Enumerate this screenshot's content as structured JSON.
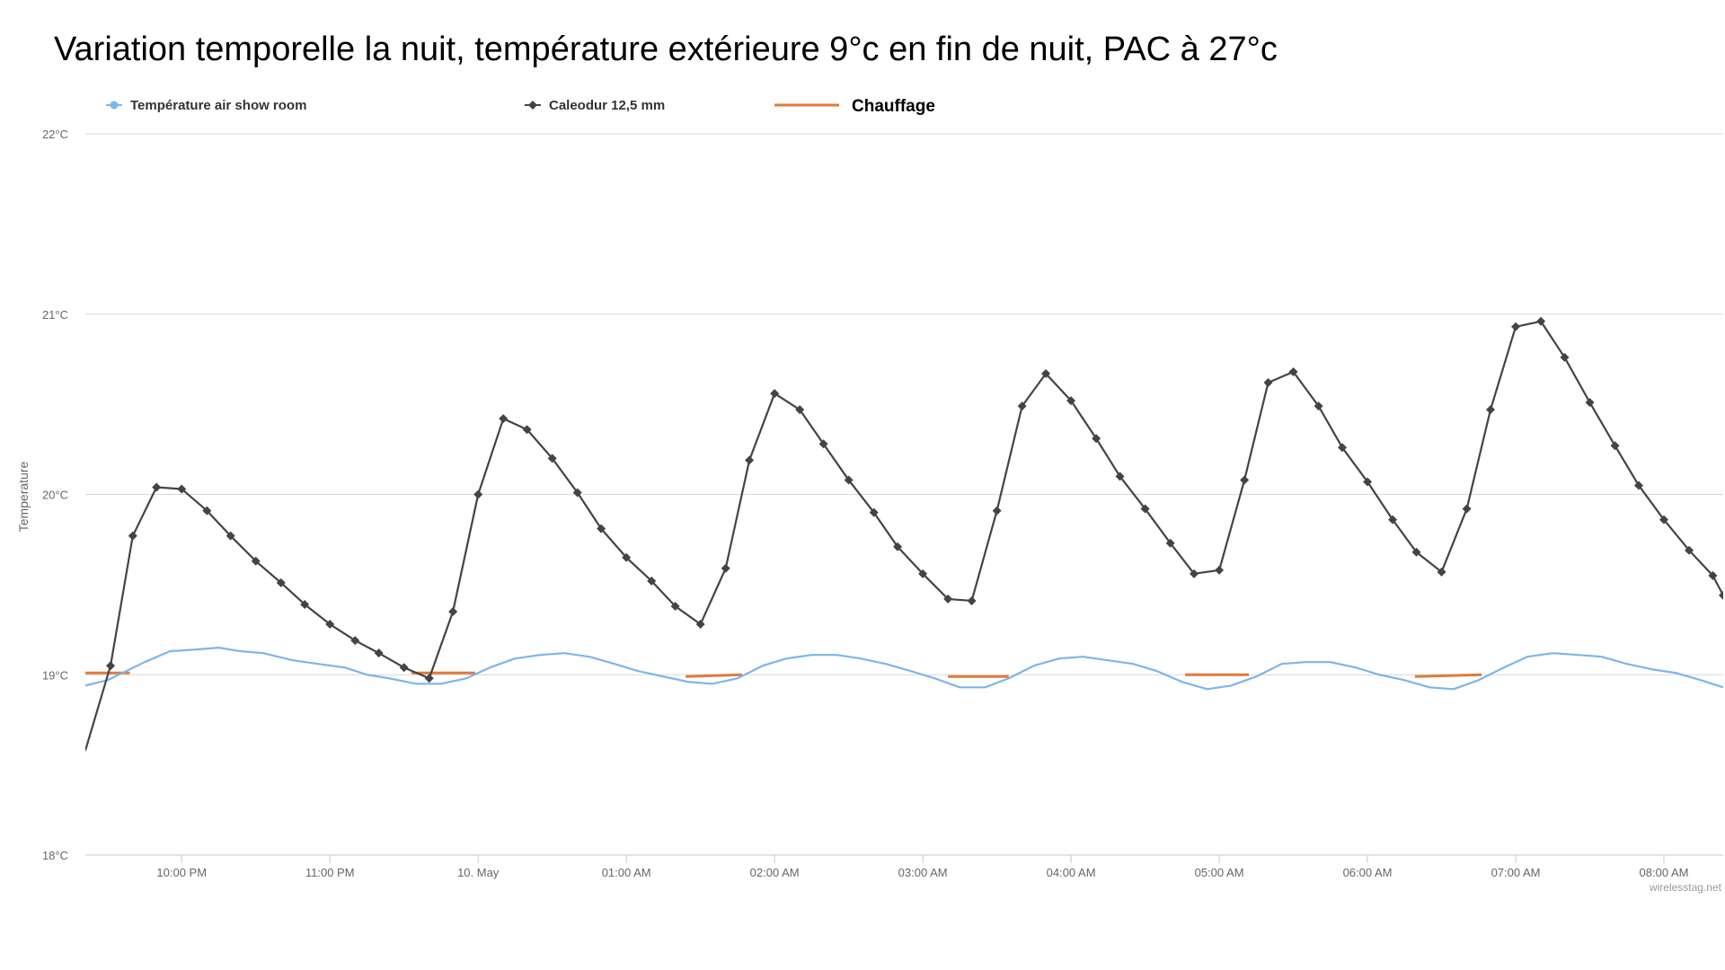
{
  "title": "Variation temporelle la nuit, température extérieure 9°c en fin de nuit, PAC à 27°c",
  "chart_data": {
    "type": "line",
    "ylabel": "Temperature",
    "ylim": [
      18,
      22
    ],
    "yticks": [
      {
        "value": 18,
        "label": "18°C"
      },
      {
        "value": 19,
        "label": "19°C"
      },
      {
        "value": 20,
        "label": "20°C"
      },
      {
        "value": 21,
        "label": "21°C"
      },
      {
        "value": 22,
        "label": "22°C"
      }
    ],
    "xlim_hours": [
      -2.65,
      8.4
    ],
    "xticks": [
      {
        "hour": -2,
        "label": "10:00 PM"
      },
      {
        "hour": -1,
        "label": "11:00 PM"
      },
      {
        "hour": 0,
        "label": "10. May"
      },
      {
        "hour": 1,
        "label": "01:00 AM"
      },
      {
        "hour": 2,
        "label": "02:00 AM"
      },
      {
        "hour": 3,
        "label": "03:00 AM"
      },
      {
        "hour": 4,
        "label": "04:00 AM"
      },
      {
        "hour": 5,
        "label": "05:00 AM"
      },
      {
        "hour": 6,
        "label": "06:00 AM"
      },
      {
        "hour": 7,
        "label": "07:00 AM"
      },
      {
        "hour": 8,
        "label": "08:00 AM"
      }
    ],
    "credits": "wirelesstag.net",
    "series": [
      {
        "name": "Température air show room",
        "color": "#7cb5ec",
        "marker": "circle",
        "x": [
          -2.65,
          -2.5,
          -2.4,
          -2.25,
          -2.08,
          -1.9,
          -1.75,
          -1.6,
          -1.45,
          -1.25,
          -1.08,
          -0.9,
          -0.75,
          -0.6,
          -0.42,
          -0.25,
          -0.08,
          0.08,
          0.25,
          0.42,
          0.58,
          0.75,
          0.92,
          1.08,
          1.25,
          1.42,
          1.58,
          1.75,
          1.92,
          2.08,
          2.25,
          2.42,
          2.58,
          2.75,
          2.92,
          3.08,
          3.25,
          3.42,
          3.58,
          3.75,
          3.92,
          4.08,
          4.25,
          4.42,
          4.58,
          4.75,
          4.92,
          5.08,
          5.25,
          5.42,
          5.58,
          5.75,
          5.92,
          6.08,
          6.25,
          6.42,
          6.58,
          6.75,
          6.92,
          7.08,
          7.25,
          7.42,
          7.58,
          7.75,
          7.92,
          8.08,
          8.25,
          8.4
        ],
        "values": [
          18.94,
          18.97,
          19.01,
          19.07,
          19.13,
          19.14,
          19.15,
          19.13,
          19.12,
          19.08,
          19.06,
          19.04,
          19.0,
          18.98,
          18.95,
          18.95,
          18.98,
          19.04,
          19.09,
          19.11,
          19.12,
          19.1,
          19.06,
          19.02,
          18.99,
          18.96,
          18.95,
          18.98,
          19.05,
          19.09,
          19.11,
          19.11,
          19.09,
          19.06,
          19.02,
          18.98,
          18.93,
          18.93,
          18.98,
          19.05,
          19.09,
          19.1,
          19.08,
          19.06,
          19.02,
          18.96,
          18.92,
          18.94,
          18.99,
          19.06,
          19.07,
          19.07,
          19.04,
          19.0,
          18.97,
          18.93,
          18.92,
          18.97,
          19.04,
          19.1,
          19.12,
          19.11,
          19.1,
          19.06,
          19.03,
          19.01,
          18.97,
          18.93
        ]
      },
      {
        "name": "Caleodur 12,5 mm",
        "color": "#434348",
        "marker": "diamond",
        "x": [
          -2.65,
          -2.48,
          -2.33,
          -2.17,
          -2.0,
          -1.83,
          -1.67,
          -1.5,
          -1.33,
          -1.17,
          -1.0,
          -0.83,
          -0.67,
          -0.5,
          -0.33,
          -0.17,
          0.0,
          0.17,
          0.33,
          0.5,
          0.67,
          0.83,
          1.0,
          1.17,
          1.33,
          1.5,
          1.67,
          1.83,
          2.0,
          2.17,
          2.33,
          2.5,
          2.67,
          2.83,
          3.0,
          3.17,
          3.33,
          3.5,
          3.67,
          3.83,
          4.0,
          4.17,
          4.33,
          4.5,
          4.67,
          4.83,
          5.0,
          5.17,
          5.33,
          5.5,
          5.67,
          5.83,
          6.0,
          6.17,
          6.33,
          6.5,
          6.67,
          6.83,
          7.0,
          7.17,
          7.33,
          7.5,
          7.67,
          7.83,
          8.0,
          8.17,
          8.33,
          8.4
        ],
        "values": [
          18.58,
          19.05,
          19.77,
          20.04,
          20.03,
          19.91,
          19.77,
          19.63,
          19.51,
          19.39,
          19.28,
          19.19,
          19.12,
          19.04,
          18.98,
          19.35,
          20.0,
          20.42,
          20.36,
          20.2,
          20.01,
          19.81,
          19.65,
          19.52,
          19.38,
          19.28,
          19.59,
          20.19,
          20.56,
          20.47,
          20.28,
          20.08,
          19.9,
          19.71,
          19.56,
          19.42,
          19.41,
          19.91,
          20.49,
          20.67,
          20.52,
          20.31,
          20.1,
          19.92,
          19.73,
          19.56,
          19.58,
          20.08,
          20.62,
          20.68,
          20.49,
          20.26,
          20.07,
          19.86,
          19.68,
          19.57,
          19.92,
          20.47,
          20.93,
          20.96,
          20.76,
          20.51,
          20.27,
          20.05,
          19.86,
          19.69,
          19.55,
          19.44
        ]
      },
      {
        "name": "Chauffage",
        "color": "#e07b39",
        "marker": "none",
        "segments": [
          {
            "x": [
              -2.65,
              -2.35
            ],
            "values": [
              19.01,
              19.01
            ]
          },
          {
            "x": [
              -0.45,
              -0.02
            ],
            "values": [
              19.01,
              19.01
            ]
          },
          {
            "x": [
              1.4,
              1.78
            ],
            "values": [
              18.99,
              19.0
            ]
          },
          {
            "x": [
              3.17,
              3.58
            ],
            "values": [
              18.99,
              18.99
            ]
          },
          {
            "x": [
              4.77,
              5.2
            ],
            "values": [
              19.0,
              19.0
            ]
          },
          {
            "x": [
              6.32,
              6.77
            ],
            "values": [
              18.99,
              19.0
            ]
          }
        ]
      }
    ]
  }
}
